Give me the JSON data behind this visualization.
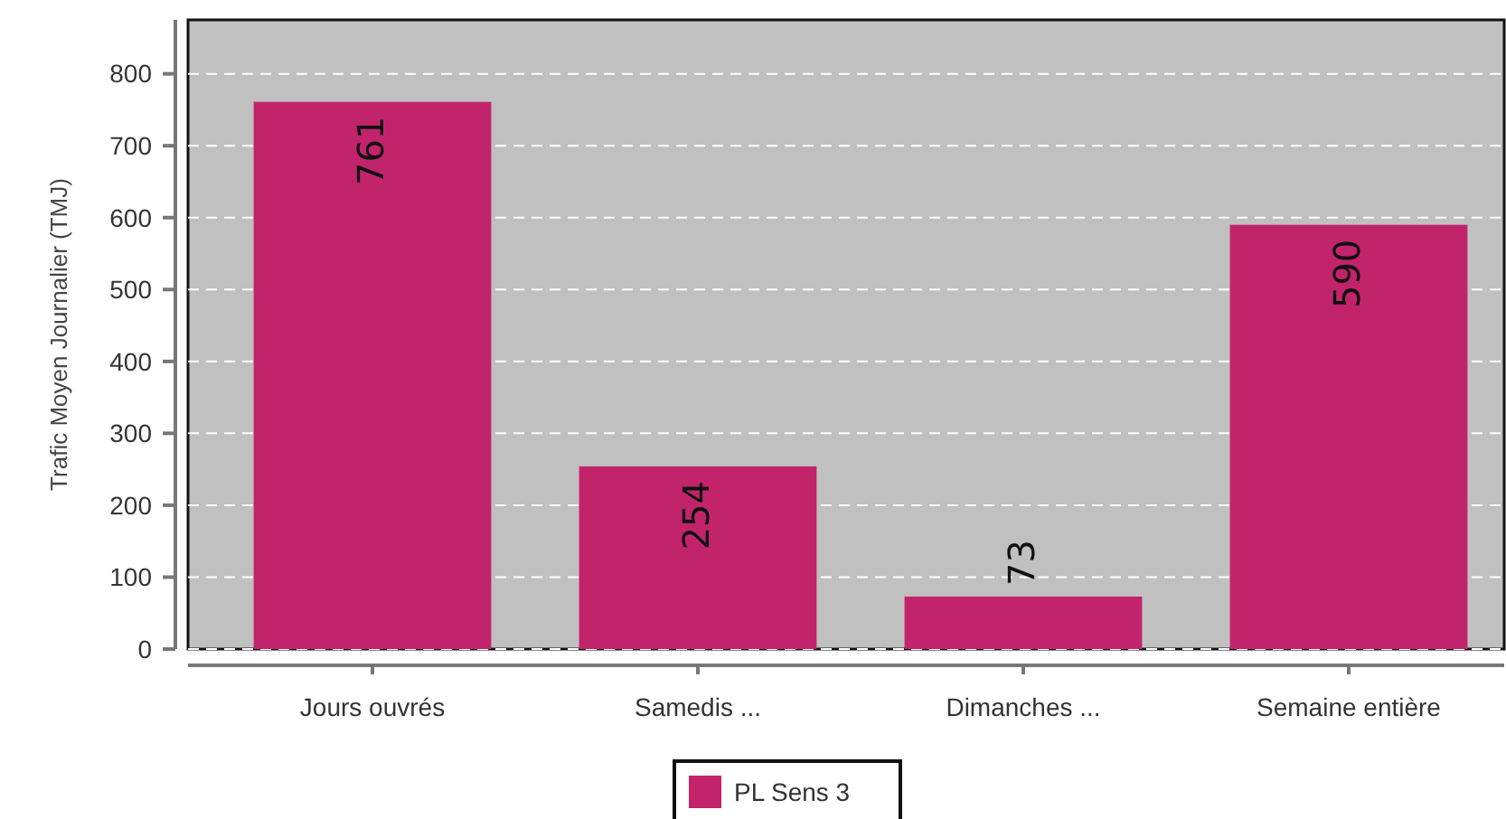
{
  "chart_data": {
    "type": "bar",
    "ylabel": "Trafic Moyen Journalier (TMJ)",
    "categories": [
      "Jours ouvrés",
      "Samedis ...",
      "Dimanches ...",
      "Semaine entière"
    ],
    "series": [
      {
        "name": "PL Sens 3",
        "color": "#c2246c",
        "values": [
          761,
          254,
          73,
          590
        ]
      }
    ],
    "ylim": [
      0,
      875
    ],
    "yticks": [
      0,
      100,
      200,
      300,
      400,
      500,
      600,
      700,
      800
    ],
    "grid": "y",
    "legend": "bottom",
    "data_labels": true
  }
}
